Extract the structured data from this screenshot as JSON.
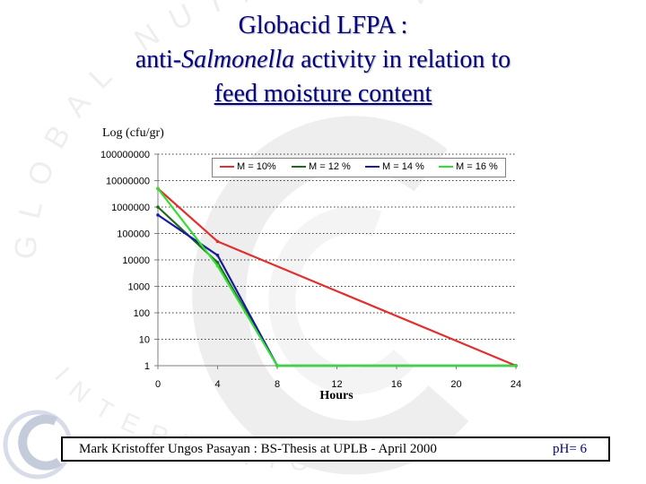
{
  "slide": {
    "title_line1": "Globacid LFPA :",
    "title_line2_prefix": "anti-",
    "title_line2_italic": "Salmonella",
    "title_line2_suffix": " activity in relation to",
    "title_line3": "feed moisture content",
    "footer_text": "Mark Kristoffer Ungos Pasayan  : BS-Thesis at UPLB - April 2000",
    "footer_ph": "pH= 6",
    "watermark_top": "GLOBAL NUTRITION",
    "watermark_bottom": "INTERNATIONAL"
  },
  "chart_data": {
    "type": "line",
    "ylabel": "Log (cfu/gr)",
    "xlabel": "Hours",
    "x": [
      0,
      4,
      8,
      12,
      16,
      20,
      24
    ],
    "x_ticks": [
      "0",
      "4",
      "8",
      "12",
      "16",
      "20",
      "24"
    ],
    "xlim": [
      0,
      24
    ],
    "y_scale": "log",
    "ylim": [
      1,
      100000000
    ],
    "y_ticks": [
      "1",
      "10",
      "100",
      "1000",
      "10000",
      "100000",
      "1000000",
      "10000000",
      "100000000"
    ],
    "grid": "horizontal dotted",
    "legend_position": "top-right",
    "series": [
      {
        "name": "M = 10%",
        "color": "#e03030",
        "points": [
          [
            0,
            5000000
          ],
          [
            4,
            50000
          ],
          [
            24,
            1
          ]
        ]
      },
      {
        "name": "M = 12 %",
        "color": "#1e6b1e",
        "points": [
          [
            0,
            1000000
          ],
          [
            4,
            8000
          ],
          [
            8,
            1
          ],
          [
            24,
            1
          ]
        ]
      },
      {
        "name": "M = 14 %",
        "color": "#1a1a9c",
        "points": [
          [
            0,
            500000
          ],
          [
            4,
            15000
          ],
          [
            8,
            1
          ],
          [
            24,
            1
          ]
        ]
      },
      {
        "name": "M = 16 %",
        "color": "#33dd33",
        "points": [
          [
            0,
            5000000
          ],
          [
            4,
            6000
          ],
          [
            8,
            1
          ],
          [
            24,
            1
          ]
        ]
      }
    ]
  }
}
